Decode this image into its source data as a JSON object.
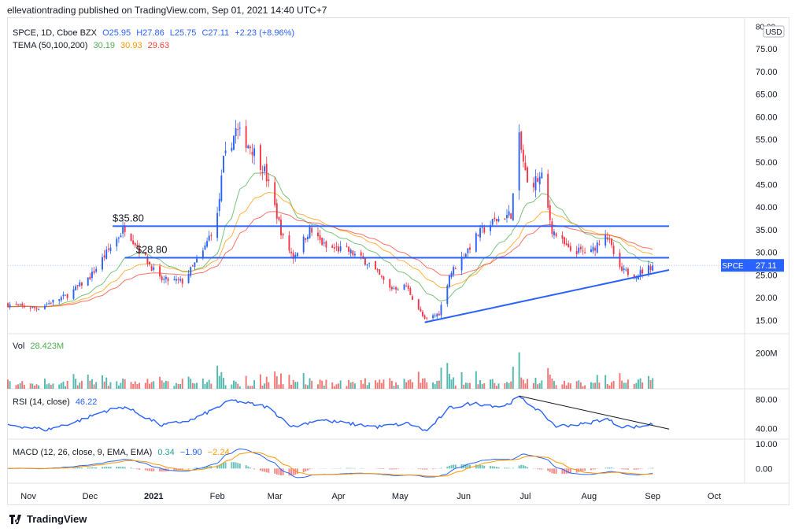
{
  "header": {
    "text": "ellevationtrading published on TradingView.com, Sep 01, 2021 14:40 UTC+7"
  },
  "legend": {
    "symbol": "SPCE, 1D, Cboe BZX",
    "open": "O25.95",
    "high": "H27.86",
    "low": "L25.75",
    "close": "C27.11",
    "change": "+2.23 (+8.96%)",
    "tema_label": "TEMA (50,100,200)",
    "tema_1": "30.19",
    "tema_2": "30.93",
    "tema_3": "29.63"
  },
  "volume_legend": {
    "label": "Vol",
    "value": "28.423M"
  },
  "rsi_legend": {
    "label": "RSI (14, close)",
    "value": "46.22"
  },
  "macd_legend": {
    "label": "MACD (12, 26, close, 9, EMA, EMA)",
    "v1": "0.34",
    "v2": "−1.90",
    "v3": "−2.24"
  },
  "price_axis": {
    "currency": "USD",
    "ticks": [
      "80.00",
      "75.00",
      "70.00",
      "65.00",
      "60.00",
      "55.00",
      "50.00",
      "45.00",
      "40.00",
      "35.00",
      "30.00",
      "25.00",
      "20.00",
      "15.00"
    ]
  },
  "volume_axis": {
    "ticks": [
      "200M"
    ]
  },
  "rsi_axis": {
    "ticks": [
      "80.00",
      "40.00"
    ]
  },
  "macd_axis": {
    "ticks": [
      "10.00",
      "0.00"
    ]
  },
  "time_axis": {
    "ticks": [
      "Nov",
      "Dec",
      "2021",
      "Feb",
      "Mar",
      "Apr",
      "May",
      "Jun",
      "Jul",
      "Aug",
      "Sep",
      "Oct"
    ]
  },
  "last_price_tag": {
    "symbol": "SPCE",
    "value": "27.11"
  },
  "annotations": {
    "resistance_1": "$35.80",
    "resistance_2": "$28.80"
  },
  "footer": {
    "brand": "TradingView"
  },
  "colors": {
    "up": "#2962ff",
    "down": "#f23645",
    "tema_1": "#4caf50",
    "tema_2": "#ff9800",
    "tema_3": "#f44336",
    "rsi": "#2962ff",
    "macd": "#2962ff",
    "signal": "#ff9800",
    "level": "#2962ff"
  },
  "chart_data": [
    {
      "type": "candlestick",
      "title": "SPCE, 1D, Cboe BZX",
      "ylim": [
        12,
        82
      ],
      "x_range": [
        "2020-10-22",
        "2021-10-15"
      ],
      "levels": [
        35.8,
        28.8
      ],
      "trendline": {
        "from": [
          "2021-05-13",
          14.5
        ],
        "to": [
          "2021-09-01",
          25.5
        ]
      },
      "close_path": {
        "dates": [
          "2020-10-22",
          "2020-11-05",
          "2020-11-20",
          "2020-12-01",
          "2020-12-10",
          "2020-12-18",
          "2021-01-04",
          "2021-01-15",
          "2021-01-25",
          "2021-02-01",
          "2021-02-04",
          "2021-02-10",
          "2021-02-18",
          "2021-02-24",
          "2021-03-01",
          "2021-03-05",
          "2021-03-10",
          "2021-03-18",
          "2021-03-26",
          "2021-04-05",
          "2021-04-16",
          "2021-04-26",
          "2021-05-04",
          "2021-05-13",
          "2021-05-20",
          "2021-05-25",
          "2021-06-02",
          "2021-06-08",
          "2021-06-16",
          "2021-06-24",
          "2021-06-28",
          "2021-07-02",
          "2021-07-09",
          "2021-07-14",
          "2021-07-22",
          "2021-08-02",
          "2021-08-09",
          "2021-08-16",
          "2021-08-24",
          "2021-09-01"
        ],
        "close": [
          18.5,
          17.6,
          20.5,
          24.5,
          30.5,
          35.5,
          24.0,
          23.5,
          30.0,
          38.0,
          50.0,
          57.0,
          53.0,
          48.0,
          40.0,
          33.0,
          29.0,
          35.0,
          31.0,
          30.5,
          27.5,
          22.0,
          22.5,
          15.0,
          16.5,
          25.0,
          30.0,
          34.0,
          37.0,
          38.5,
          55.0,
          45.0,
          46.5,
          35.0,
          30.5,
          30.0,
          34.5,
          26.0,
          25.0,
          27.11
        ]
      }
    },
    {
      "type": "bar",
      "title": "Vol",
      "ylim": [
        0,
        280
      ],
      "unit": "M"
    },
    {
      "type": "line",
      "title": "RSI (14, close)",
      "ylim": [
        25,
        95
      ],
      "x": [
        "2020-10-22",
        "2020-11-10",
        "2020-11-25",
        "2020-12-08",
        "2020-12-18",
        "2021-01-05",
        "2021-01-20",
        "2021-02-08",
        "2021-02-25",
        "2021-03-10",
        "2021-03-22",
        "2021-04-05",
        "2021-04-20",
        "2021-05-05",
        "2021-05-14",
        "2021-05-25",
        "2021-06-05",
        "2021-06-20",
        "2021-06-28",
        "2021-07-06",
        "2021-07-16",
        "2021-07-30",
        "2021-08-09",
        "2021-08-16",
        "2021-08-25",
        "2021-09-01"
      ],
      "values": [
        45,
        38,
        50,
        64,
        70,
        44,
        52,
        79,
        70,
        42,
        52,
        47,
        42,
        47,
        36,
        68,
        75,
        70,
        83,
        68,
        43,
        46,
        54,
        43,
        42,
        46.22
      ],
      "trendline": {
        "from": [
          "2021-06-28",
          85
        ],
        "to": [
          "2021-09-09",
          39
        ]
      }
    },
    {
      "type": "line",
      "title": "MACD (12, 26, close, 9, EMA, EMA)",
      "ylim": [
        -6,
        12
      ]
    }
  ]
}
